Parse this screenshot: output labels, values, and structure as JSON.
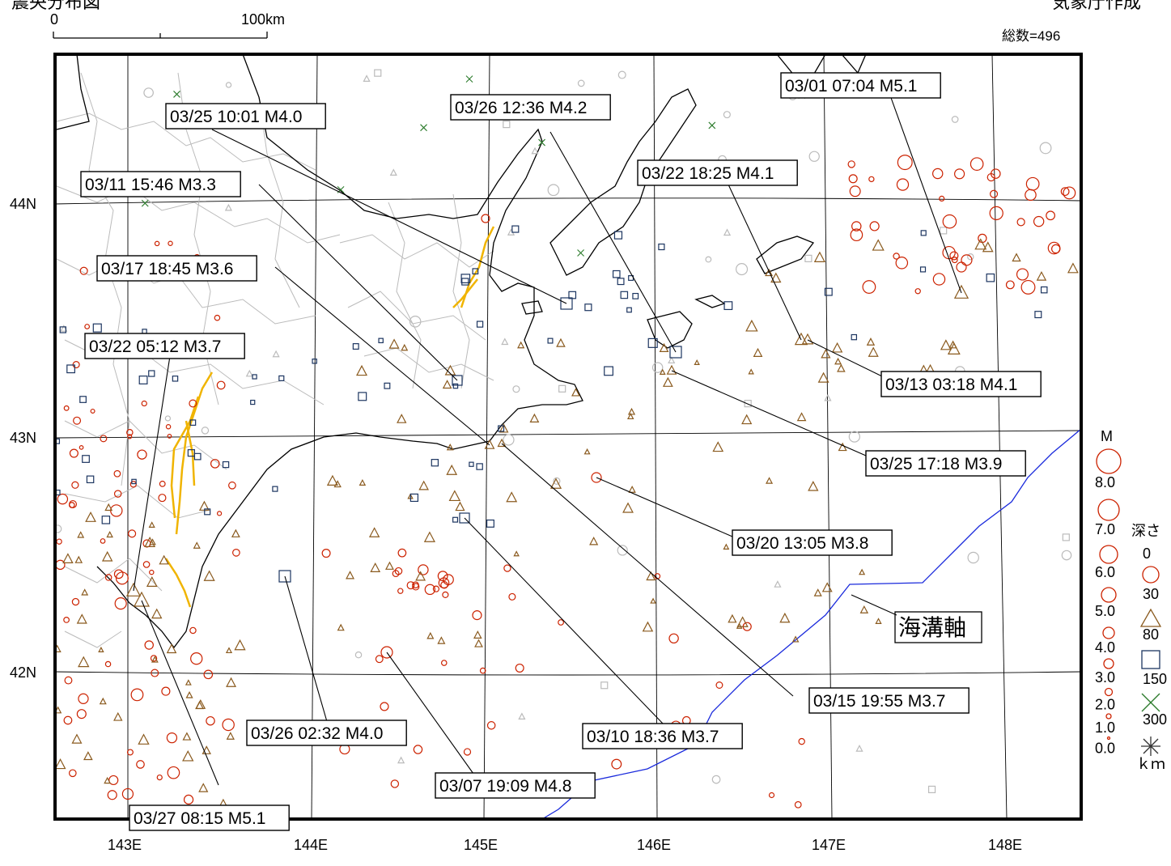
{
  "title_fragment_left": "震央分布図",
  "title_fragment_right": "気象庁作成",
  "scale_bar": {
    "zero_label": "0",
    "end_label": "100km"
  },
  "total_count": "総数=496",
  "lat_labels": [
    "44N",
    "43N",
    "42N"
  ],
  "lon_labels": [
    "143E",
    "144E",
    "145E",
    "146E",
    "147E",
    "148E"
  ],
  "trench_label": "海溝軸",
  "legend": {
    "magnitude_title": "M",
    "magnitude_values": [
      "8.0",
      "7.0",
      "6.0",
      "5.0",
      "4.0",
      "3.0",
      "2.0",
      "1.0",
      "0.0"
    ],
    "depth_title": "深さ",
    "depth_values": [
      "0",
      "30",
      "80",
      "150",
      "300"
    ],
    "depth_unit": "ｋｍ",
    "depth_symbols": [
      "circle",
      "triangle",
      "square",
      "x-cross",
      "star-burst"
    ],
    "depth_colors": [
      "#cc2200",
      "#8a5a1e",
      "#1c3560",
      "#2a7a2a",
      "#333333"
    ]
  },
  "events": [
    "03/25 10:01 M4.0",
    "03/26 12:36 M4.2",
    "03/01 07:04 M5.1",
    "03/11 15:46 M3.3",
    "03/22 18:25 M4.1",
    "03/17 18:45 M3.6",
    "03/22 05:12 M3.7",
    "03/13 03:18 M4.1",
    "03/25 17:18 M3.9",
    "03/20 13:05 M3.8",
    "03/15 19:55 M3.7",
    "03/26 02:32 M4.0",
    "03/10 18:36 M3.7",
    "03/07 19:09 M4.8",
    "03/27 08:15 M5.1"
  ],
  "colors": {
    "shallow": "#cc2200",
    "mid": "#8a5a1e",
    "deep": "#1c3560",
    "very_deep": "#2a7a2a",
    "fault": "#f0b400",
    "trench": "#1a2adc",
    "boundary": "#bbbbbb"
  }
}
